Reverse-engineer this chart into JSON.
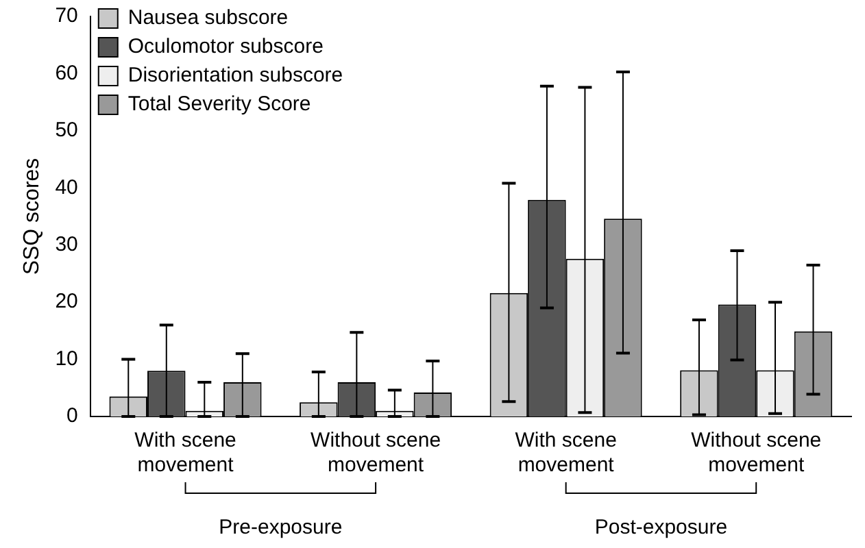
{
  "chart_data": {
    "type": "bar",
    "ylabel": "SSQ scores",
    "categories": [
      "With scene movement",
      "Without scene movement",
      "With scene movement",
      "Without scene movement"
    ],
    "series": [
      {
        "name": "Nausea subscore",
        "color": "#c8c8c8",
        "values": [
          3.5,
          2.5,
          21.6,
          8.1
        ],
        "errors": [
          [
            0,
            10
          ],
          [
            0,
            7.8
          ],
          [
            2.6,
            40.8
          ],
          [
            0.3,
            16.9
          ]
        ]
      },
      {
        "name": "Oculomotor subscore",
        "color": "#555555",
        "values": [
          8,
          6,
          37.9,
          19.6
        ],
        "errors": [
          [
            0,
            16
          ],
          [
            0,
            14.7
          ],
          [
            19,
            57.8
          ],
          [
            9.9,
            29
          ]
        ]
      },
      {
        "name": "Disorientation subscore",
        "color": "#eeeeee",
        "values": [
          1,
          1,
          27.6,
          8.1
        ],
        "errors": [
          [
            0,
            6
          ],
          [
            0,
            4.6
          ],
          [
            0.7,
            57.6
          ],
          [
            0.5,
            20
          ]
        ]
      },
      {
        "name": "Total Severity Score",
        "color": "#999999",
        "values": [
          6,
          4.2,
          34.6,
          14.9
        ],
        "errors": [
          [
            0,
            11
          ],
          [
            0,
            9.7
          ],
          [
            11.1,
            60.3
          ],
          [
            3.9,
            26.5
          ]
        ]
      }
    ],
    "annotations": [
      "Pre-exposure",
      "Post-exposure"
    ],
    "ylim": [
      0,
      70
    ],
    "yticks": [
      0,
      10,
      20,
      30,
      40,
      50,
      60,
      70
    ],
    "grid": false,
    "legend": "top left"
  }
}
